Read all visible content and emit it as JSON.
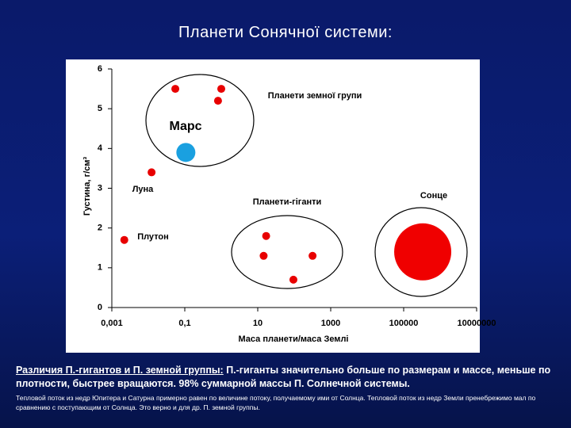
{
  "chart_data": {
    "type": "scatter",
    "title": "Планети Сонячної системи:",
    "x_label": "Маса планети/маса Землі",
    "y_label": "Густина, г/см³",
    "xscale": "log",
    "xlim": [
      0.001,
      10000000
    ],
    "ylim": [
      0,
      6
    ],
    "xticks": [
      {
        "value": 0.001,
        "label": "0,001"
      },
      {
        "value": 0.1,
        "label": "0,1"
      },
      10,
      1000,
      100000,
      10000000
    ],
    "yticks": [
      0,
      1,
      2,
      3,
      4,
      5,
      6
    ],
    "series": [
      {
        "color": "#e80000",
        "x": [
          0.055,
          0.815,
          1,
          0.0123,
          0.0022,
          17,
          14.5,
          318,
          95
        ],
        "values": [
          5.5,
          5.2,
          5.5,
          3.4,
          1.7,
          1.8,
          1.3,
          1.3,
          0.7
        ]
      },
      {
        "color": "#1aa0e0",
        "x": [
          0.107
        ],
        "values": [
          3.9
        ]
      },
      {
        "color": "#f00000",
        "x": [
          333000
        ],
        "values": [
          1.4
        ]
      }
    ],
    "annotations": [
      "Планети земної групи",
      "Марс",
      "Луна",
      "Плутон",
      "Сонце",
      "Планети-гіганти"
    ]
  },
  "notes": {
    "heading": "Различия П.-гигантов и П. земной группы:",
    "text": " П.-гиганты значительно больше по размерам и массе, меньше по плотности, быстрее вращаются. 98% суммарной массы П. Солнечной системы.",
    "small": "Тепловой поток из недр Юпитера и Сатурна примерно равен по величине потоку, получаемому ими от Солнца. Тепловой поток из недр Земли пренебрежимо мал по сравнению с поступающим от Солнца. Это верно и для др. П. земной группы."
  }
}
